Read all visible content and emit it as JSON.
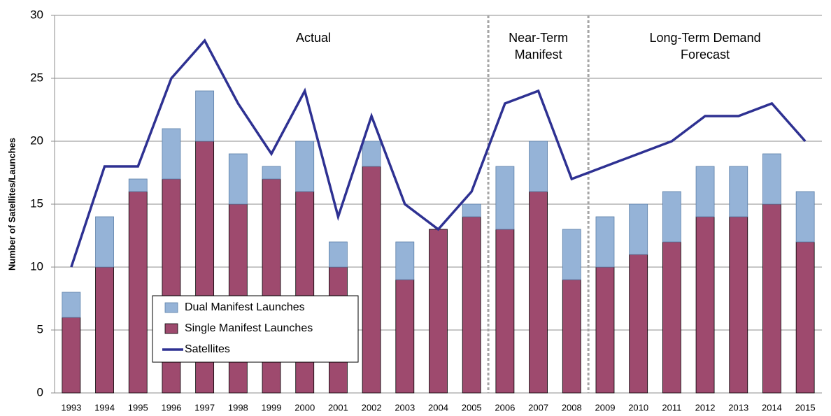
{
  "chart_data": {
    "type": "bar",
    "stacked": true,
    "y_label": "Number of Satellites/Launches",
    "categories": [
      "1993",
      "1994",
      "1995",
      "1996",
      "1997",
      "1998",
      "1999",
      "2000",
      "2001",
      "2002",
      "2003",
      "2004",
      "2005",
      "2006",
      "2007",
      "2008",
      "2009",
      "2010",
      "2011",
      "2012",
      "2013",
      "2014",
      "2015"
    ],
    "series": [
      {
        "name": "Single Manifest Launches",
        "type": "bar",
        "color": "#9e4a6e",
        "values": [
          6,
          10,
          16,
          17,
          20,
          15,
          17,
          16,
          10,
          18,
          9,
          13,
          14,
          13,
          16,
          9,
          10,
          11,
          12,
          14,
          14,
          15,
          12
        ]
      },
      {
        "name": "Dual Manifest Launches",
        "type": "bar",
        "color": "#95b3d7",
        "values": [
          2,
          4,
          1,
          4,
          4,
          4,
          1,
          4,
          2,
          2,
          3,
          0,
          1,
          5,
          4,
          4,
          4,
          4,
          4,
          4,
          4,
          4,
          4
        ]
      },
      {
        "name": "Satellites",
        "type": "line",
        "color": "#2e3192",
        "values": [
          10,
          18,
          18,
          25,
          28,
          23,
          19,
          24,
          14,
          22,
          15,
          13,
          16,
          23,
          24,
          17,
          18,
          19,
          20,
          22,
          22,
          23,
          20
        ]
      }
    ],
    "annotations": [
      [
        "Actual"
      ],
      [
        "Near-Term",
        "Manifest"
      ],
      [
        "Long-Term Demand",
        "Forecast"
      ]
    ],
    "ylim": [
      0,
      30
    ],
    "yticks": [
      0,
      5,
      10,
      15,
      20,
      25,
      30
    ],
    "grid": true
  }
}
